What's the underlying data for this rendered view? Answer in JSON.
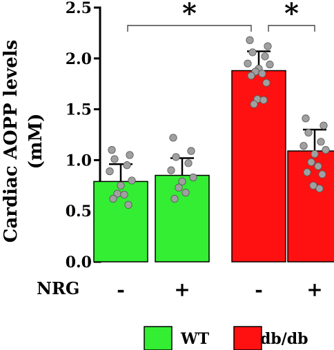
{
  "chart_data": {
    "type": "bar",
    "ylabel_line1": "Cardiac AOPP levels",
    "ylabel_line2": "(mM)",
    "ylim": [
      0,
      2.5
    ],
    "yticks": [
      "0.0",
      "0.5",
      "1.0",
      "1.5",
      "2.0",
      "2.5"
    ],
    "ytick_values": [
      0,
      0.5,
      1.0,
      1.5,
      2.0,
      2.5
    ],
    "row_label": "NRG",
    "categories": [
      "-",
      "+",
      "-",
      "+"
    ],
    "groups": [
      "WT",
      "WT",
      "db/db",
      "db/db"
    ],
    "values": [
      0.79,
      0.85,
      1.88,
      1.09
    ],
    "errors": [
      0.17,
      0.17,
      0.19,
      0.21
    ],
    "points": [
      [
        1.1,
        1.05,
        1.01,
        0.95,
        0.89,
        0.8,
        0.75,
        0.67,
        0.66,
        0.62,
        0.56
      ],
      [
        1.22,
        1.09,
        1.03,
        0.97,
        0.9,
        0.83,
        0.79,
        0.73,
        0.68,
        0.62
      ],
      [
        2.18,
        2.12,
        2.06,
        2.02,
        1.95,
        1.94,
        1.9,
        1.87,
        1.85,
        1.83,
        1.76,
        1.6,
        1.59,
        1.55
      ],
      [
        1.41,
        1.34,
        1.27,
        1.18,
        1.14,
        1.1,
        1.06,
        0.98,
        0.94,
        0.88,
        0.86,
        0.75,
        0.72
      ]
    ],
    "colors": {
      "WT": "#33ee33",
      "db/db": "#ff1111",
      "point": "#a0a0a0",
      "point_edge": "#555555"
    },
    "significance": [
      {
        "from": 0,
        "to": 2,
        "label": "*"
      },
      {
        "from": 2,
        "to": 3,
        "label": "*"
      }
    ],
    "legend": [
      {
        "name": "WT",
        "color": "#33ee33"
      },
      {
        "name": "db/db",
        "color": "#ff1111"
      }
    ],
    "legend_position": "bottom",
    "grid": false
  }
}
